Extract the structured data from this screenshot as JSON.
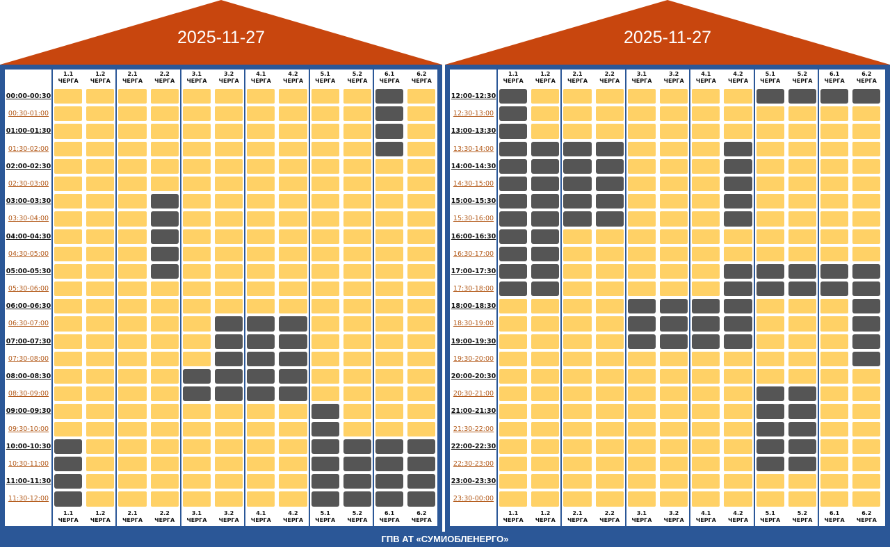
{
  "colors": {
    "roof": "#c8460e",
    "frame": "#2b5797",
    "power_on": "#ffd166",
    "power_off": "#555555"
  },
  "panels": [
    {
      "date": "2025-11-27",
      "times": [
        "00:00-00:30",
        "00:30-01:00",
        "01:00-01:30",
        "01:30-02:00",
        "02:00-02:30",
        "02:30-03:00",
        "03:00-03:30",
        "03:30-04:00",
        "04:00-04:30",
        "04:30-05:00",
        "05:00-05:30",
        "05:30-06:00",
        "06:00-06:30",
        "06:30-07:00",
        "07:00-07:30",
        "07:30-08:00",
        "08:00-08:30",
        "08:30-09:00",
        "09:00-09:30",
        "09:30-10:00",
        "10:00-10:30",
        "10:30-11:00",
        "11:00-11:30",
        "11:30-12:00"
      ],
      "queues": [
        {
          "num": "1.1",
          "label": "ЧЕРГА",
          "off": [
            20,
            21,
            22,
            23
          ]
        },
        {
          "num": "1.2",
          "label": "ЧЕРГА",
          "off": []
        },
        {
          "num": "2.1",
          "label": "ЧЕРГА",
          "off": []
        },
        {
          "num": "2.2",
          "label": "ЧЕРГА",
          "off": [
            6,
            7,
            8,
            9,
            10
          ]
        },
        {
          "num": "3.1",
          "label": "ЧЕРГА",
          "off": [
            16,
            17
          ]
        },
        {
          "num": "3.2",
          "label": "ЧЕРГА",
          "off": [
            13,
            14,
            15,
            16,
            17
          ]
        },
        {
          "num": "4.1",
          "label": "ЧЕРГА",
          "off": [
            13,
            14,
            15,
            16,
            17
          ]
        },
        {
          "num": "4.2",
          "label": "ЧЕРГА",
          "off": [
            13,
            14,
            15,
            16,
            17
          ]
        },
        {
          "num": "5.1",
          "label": "ЧЕРГА",
          "off": [
            18,
            19,
            20,
            21,
            22,
            23
          ]
        },
        {
          "num": "5.2",
          "label": "ЧЕРГА",
          "off": [
            20,
            21,
            22,
            23
          ]
        },
        {
          "num": "6.1",
          "label": "ЧЕРГА",
          "off": [
            0,
            1,
            2,
            3,
            20,
            21,
            22,
            23
          ]
        },
        {
          "num": "6.2",
          "label": "ЧЕРГА",
          "off": [
            20,
            21,
            22,
            23
          ]
        }
      ]
    },
    {
      "date": "2025-11-27",
      "times": [
        "12:00-12:30",
        "12:30-13:00",
        "13:00-13:30",
        "13:30-14:00",
        "14:00-14:30",
        "14:30-15:00",
        "15:00-15:30",
        "15:30-16:00",
        "16:00-16:30",
        "16:30-17:00",
        "17:00-17:30",
        "17:30-18:00",
        "18:00-18:30",
        "18:30-19:00",
        "19:00-19:30",
        "19:30-20:00",
        "20:00-20:30",
        "20:30-21:00",
        "21:00-21:30",
        "21:30-22:00",
        "22:00-22:30",
        "22:30-23:00",
        "23:00-23:30",
        "23:30-00:00"
      ],
      "queues": [
        {
          "num": "1.1",
          "label": "ЧЕРГА",
          "off": [
            0,
            1,
            2,
            3,
            4,
            5,
            6,
            7,
            8,
            9,
            10,
            11
          ]
        },
        {
          "num": "1.2",
          "label": "ЧЕРГА",
          "off": [
            3,
            4,
            5,
            6,
            7,
            8,
            9,
            10,
            11
          ]
        },
        {
          "num": "2.1",
          "label": "ЧЕРГА",
          "off": [
            3,
            4,
            5,
            6,
            7
          ]
        },
        {
          "num": "2.2",
          "label": "ЧЕРГА",
          "off": [
            3,
            4,
            5,
            6,
            7
          ]
        },
        {
          "num": "3.1",
          "label": "ЧЕРГА",
          "off": [
            12,
            13,
            14
          ]
        },
        {
          "num": "3.2",
          "label": "ЧЕРГА",
          "off": [
            12,
            13,
            14
          ]
        },
        {
          "num": "4.1",
          "label": "ЧЕРГА",
          "off": [
            12,
            13,
            14
          ]
        },
        {
          "num": "4.2",
          "label": "ЧЕРГА",
          "off": [
            3,
            4,
            5,
            6,
            7,
            10,
            11,
            12,
            13,
            14
          ]
        },
        {
          "num": "5.1",
          "label": "ЧЕРГА",
          "off": [
            0,
            10,
            11,
            17,
            18,
            19,
            20,
            21
          ]
        },
        {
          "num": "5.2",
          "label": "ЧЕРГА",
          "off": [
            0,
            10,
            11,
            17,
            18,
            19,
            20,
            21
          ]
        },
        {
          "num": "6.1",
          "label": "ЧЕРГА",
          "off": [
            0,
            10,
            11
          ]
        },
        {
          "num": "6.2",
          "label": "ЧЕРГА",
          "off": [
            0,
            10,
            11,
            12,
            13,
            14,
            15
          ]
        }
      ]
    }
  ],
  "footer": "ГПВ АТ «СУМИОБЛЕНЕРГО»"
}
